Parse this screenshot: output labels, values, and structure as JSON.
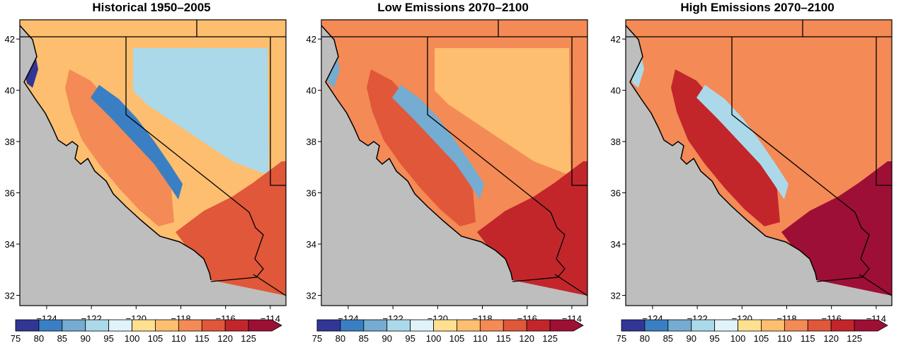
{
  "panels": [
    {
      "title": "Historical 1950–2005"
    },
    {
      "title": "Low Emissions 2070–2100"
    },
    {
      "title": "High Emissions 2070–2100"
    }
  ],
  "axes": {
    "x_ticks": [
      "−124",
      "−122",
      "−120",
      "−118",
      "−116",
      "−114"
    ],
    "y_ticks": [
      "42",
      "40",
      "38",
      "36",
      "34",
      "32"
    ]
  },
  "colorbar": {
    "labels": [
      "75",
      "80",
      "85",
      "90",
      "95",
      "100",
      "105",
      "110",
      "115",
      "120",
      "125"
    ],
    "colors": [
      "#313695",
      "#3a7fc3",
      "#74add1",
      "#abd9e9",
      "#e0f3f8",
      "#fee090",
      "#fdbe6f",
      "#f48a55",
      "#e0573a",
      "#c2262b",
      "#9e0f36"
    ]
  },
  "map_colors": {
    "ocean": "#bebebe",
    "border": "#000000"
  }
}
